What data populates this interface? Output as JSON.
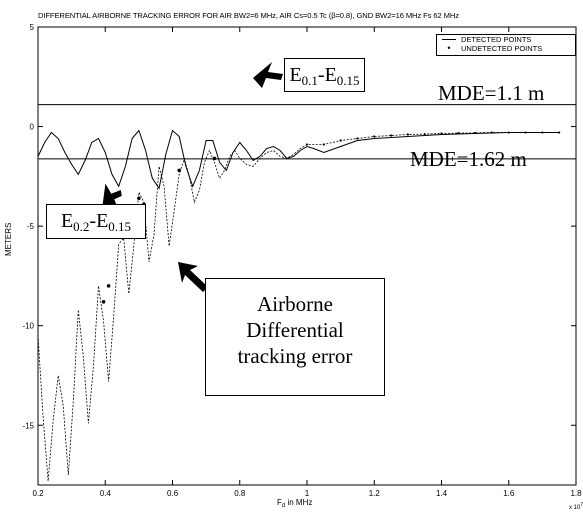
{
  "chart_data": {
    "type": "line",
    "title": "DIFFERENTIAL AIRBORNE TRACKING ERROR FOR AIR BW2=6 MHz, AIR Cs=0.5 Tc (β=0.8), GND BW2=16 MHz Fs 62 MHz",
    "xlabel": "F_d in MHz",
    "ylabel": "METERS",
    "x_exponent_label": "x 10^7",
    "xlim": [
      0.2,
      1.8
    ],
    "ylim": [
      -18,
      5
    ],
    "xticks": [
      "0.2",
      "0.4",
      "0.6",
      "0.8",
      "1",
      "1.2",
      "1.4",
      "1.6",
      "1.8"
    ],
    "yticks": [
      "5",
      "0",
      "-5",
      "-10",
      "-15"
    ],
    "legend": {
      "placement": "top-right",
      "entries": [
        "DETECTED POINTS",
        "UNDETECTED POINTS"
      ]
    },
    "series": [
      {
        "name": "DETECTED POINTS",
        "x": [
          0.2,
          0.22,
          0.24,
          0.26,
          0.28,
          0.3,
          0.32,
          0.34,
          0.36,
          0.38,
          0.4,
          0.42,
          0.44,
          0.46,
          0.48,
          0.5,
          0.52,
          0.54,
          0.56,
          0.58,
          0.6,
          0.62,
          0.64,
          0.66,
          0.68,
          0.7,
          0.72,
          0.74,
          0.76,
          0.78,
          0.8,
          0.82,
          0.84,
          0.86,
          0.88,
          0.9,
          0.92,
          0.94,
          0.96,
          0.98,
          1.0,
          1.02,
          1.05,
          1.1,
          1.15,
          1.2,
          1.3,
          1.4,
          1.5,
          1.6,
          1.7,
          1.75
        ],
        "y": [
          -1.5,
          -0.8,
          -0.3,
          -0.6,
          -1.3,
          -1.9,
          -2.4,
          -1.7,
          -0.8,
          -0.6,
          -1.3,
          -2.4,
          -3.0,
          -2.0,
          -0.6,
          -0.2,
          -1.2,
          -2.6,
          -3.1,
          -1.4,
          -0.2,
          -0.5,
          -2.0,
          -3.0,
          -2.2,
          -0.7,
          -0.7,
          -1.8,
          -2.2,
          -1.3,
          -0.8,
          -1.2,
          -1.7,
          -1.5,
          -1.1,
          -1.0,
          -1.2,
          -1.6,
          -1.5,
          -1.2,
          -1.0,
          -1.1,
          -1.3,
          -1.0,
          -0.7,
          -0.6,
          -0.5,
          -0.4,
          -0.35,
          -0.3,
          -0.3,
          -0.3
        ]
      },
      {
        "name": "UNDETECTED POINTS",
        "x": [
          0.2,
          0.215,
          0.23,
          0.245,
          0.26,
          0.275,
          0.29,
          0.305,
          0.32,
          0.335,
          0.35,
          0.365,
          0.38,
          0.395,
          0.41,
          0.425,
          0.44,
          0.455,
          0.47,
          0.485,
          0.5,
          0.515,
          0.53,
          0.545,
          0.56,
          0.575,
          0.59,
          0.605,
          0.62,
          0.635,
          0.65,
          0.665,
          0.68,
          0.695,
          0.71,
          0.725,
          0.74,
          0.755,
          0.77,
          0.785,
          0.8,
          0.82,
          0.84,
          0.86,
          0.88,
          0.9,
          0.92,
          0.94,
          0.96,
          0.98,
          1.0,
          1.05,
          1.1,
          1.15,
          1.2,
          1.25,
          1.3,
          1.35,
          1.4,
          1.45,
          1.5,
          1.55,
          1.6,
          1.65,
          1.7,
          1.75
        ],
        "y": [
          -10.5,
          -14.5,
          -17.8,
          -14.8,
          -12.5,
          -14.0,
          -17.5,
          -13.8,
          -9.2,
          -11.6,
          -14.9,
          -12.0,
          -8.0,
          -9.8,
          -12.8,
          -9.5,
          -5.9,
          -5.6,
          -8.4,
          -6.0,
          -3.3,
          -3.8,
          -6.8,
          -5.4,
          -2.0,
          -3.0,
          -6.0,
          -4.2,
          -2.4,
          -1.6,
          -2.5,
          -3.8,
          -3.2,
          -1.8,
          -1.2,
          -1.8,
          -2.6,
          -2.2,
          -1.5,
          -1.2,
          -1.6,
          -1.9,
          -2.0,
          -1.6,
          -1.3,
          -1.2,
          -1.5,
          -1.6,
          -1.4,
          -1.1,
          -0.9,
          -0.9,
          -0.7,
          -0.6,
          -0.5,
          -0.45,
          -0.4,
          -0.38,
          -0.35,
          -0.33,
          -0.32,
          -0.3,
          -0.3,
          -0.3,
          -0.3,
          -0.3
        ]
      }
    ],
    "reference_lines": [
      {
        "label": "MDE=1.1 m",
        "y": 1.1
      },
      {
        "label": "MDE=1.62 m",
        "y": -1.62
      }
    ]
  },
  "annotations": {
    "e_top": {
      "main1": "E",
      "sub1": "0.1",
      "sep": "-",
      "main2": "E",
      "sub2": "0.15"
    },
    "e_left": {
      "main1": "E",
      "sub1": "0.2",
      "sep": "-",
      "main2": "E",
      "sub2": "0.15"
    },
    "airborne": [
      "Airborne",
      "Differential",
      "tracking error"
    ],
    "mde_top": "MDE=1.1 m",
    "mde_bottom": "MDE=1.62 m"
  },
  "axis_text": {
    "title": "DIFFERENTIAL AIRBORNE TRACKING ERROR FOR AIR BW2=6 MHz, AIR Cs=0.5 Tc (β=0.8), GND BW2=16 MHz Fs 62 MHz",
    "ylabel": "METERS",
    "xlabel_main": "F",
    "xlabel_sub": "d",
    "xlabel_rest": " in MHz",
    "exponent": "x 10",
    "exponent_power": "7"
  },
  "legend_text": {
    "detected": "DETECTED POINTS",
    "undetected": "UNDETECTED POINTS"
  }
}
